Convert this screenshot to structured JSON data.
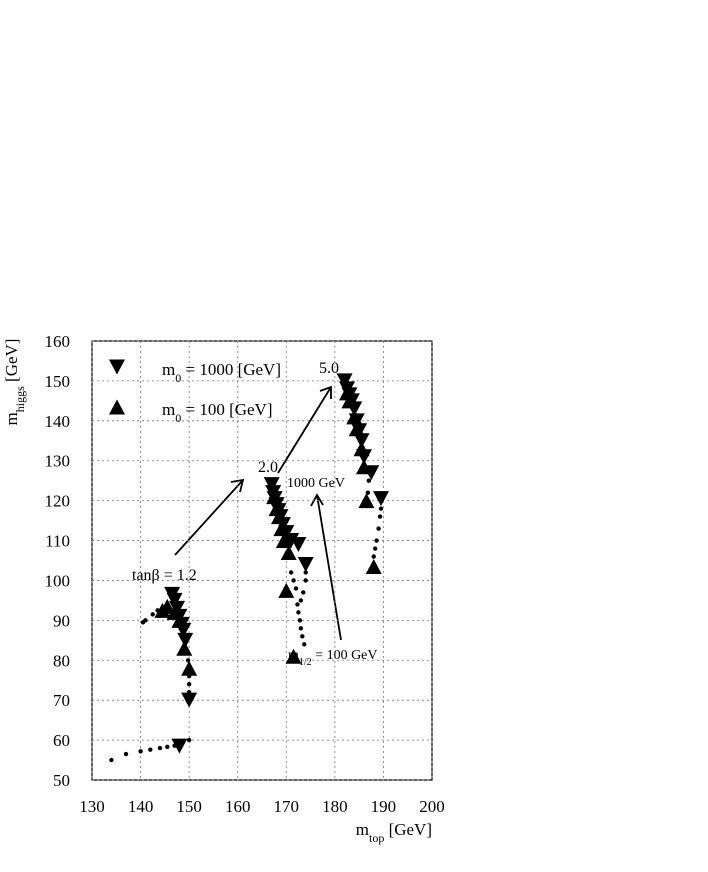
{
  "chart_data": {
    "type": "scatter",
    "xlabel": [
      "m",
      "top",
      " [GeV]"
    ],
    "ylabel": [
      "m",
      "higgs",
      " [GeV]"
    ],
    "xlim": [
      130,
      200
    ],
    "xticks": [
      130,
      140,
      150,
      160,
      170,
      180,
      190,
      200
    ],
    "ylim": [
      50,
      160
    ],
    "yticks": [
      50,
      60,
      70,
      80,
      90,
      100,
      110,
      120,
      130,
      140,
      150,
      160
    ],
    "grid": true,
    "series": [
      {
        "name": [
          "m",
          "0",
          " = 1000 [GeV]"
        ],
        "marker": "down",
        "color": "#000000",
        "x": [
          146.5,
          147,
          147.5,
          148,
          148.5,
          148.8,
          149.2,
          150,
          148,
          167,
          167.3,
          167.6,
          168,
          168.4,
          168.8,
          169.3,
          170,
          171,
          172.5,
          174,
          182,
          182.5,
          183,
          183.5,
          184,
          184.5,
          185,
          185.5,
          186,
          187.5,
          189.5
        ],
        "y": [
          96.5,
          95,
          93,
          91,
          89,
          87.5,
          85,
          70,
          58.5,
          124,
          122,
          120.5,
          119,
          117.5,
          116,
          114,
          112,
          110,
          109,
          104,
          150,
          148,
          146.5,
          145,
          143,
          140,
          137.5,
          135,
          131,
          127,
          120.5
        ]
      },
      {
        "name": [
          "m",
          "0",
          " = 100 [GeV]"
        ],
        "marker": "up",
        "color": "#000000",
        "x": [
          144.5,
          145.5,
          147,
          148,
          149,
          150,
          167.5,
          168,
          168.5,
          169,
          169.5,
          170.5,
          170,
          171.5,
          182.5,
          183,
          184,
          184.5,
          185.5,
          186,
          186.5,
          188
        ],
        "y": [
          92.5,
          93.5,
          92,
          90,
          83,
          78,
          121,
          118,
          116,
          113,
          110,
          107,
          97.5,
          81,
          147,
          145,
          141,
          138,
          133,
          128.5,
          120,
          103.5
        ]
      },
      {
        "marker": "dot",
        "color": "#000000",
        "x": [
          134,
          137,
          140,
          142,
          144,
          145.5,
          147,
          150,
          140.5,
          141,
          142.5,
          143.5,
          149.5,
          149.8,
          150,
          150,
          150,
          171,
          171.5,
          172,
          172.3,
          172.5,
          172.8,
          173,
          173.3,
          173.7,
          173,
          173.5,
          174,
          174,
          187,
          186.8,
          188,
          188.3,
          188.6,
          189,
          189.3,
          189.5
        ],
        "y": [
          55,
          56.5,
          57.2,
          57.6,
          58,
          58.3,
          58.6,
          60,
          89.5,
          90,
          91.5,
          92.5,
          82,
          80,
          76,
          74,
          72,
          102,
          100,
          98,
          94,
          92,
          90,
          88,
          86,
          84,
          95,
          97,
          100,
          102,
          125,
          122,
          106,
          108,
          110,
          113,
          116,
          118
        ]
      }
    ],
    "annotations": [
      [
        "tanβ = 1.2"
      ],
      [
        "2.0"
      ],
      [
        "5.0"
      ],
      [
        "1000 GeV"
      ],
      [
        "m",
        "1/2",
        " = 100 GeV"
      ]
    ]
  }
}
